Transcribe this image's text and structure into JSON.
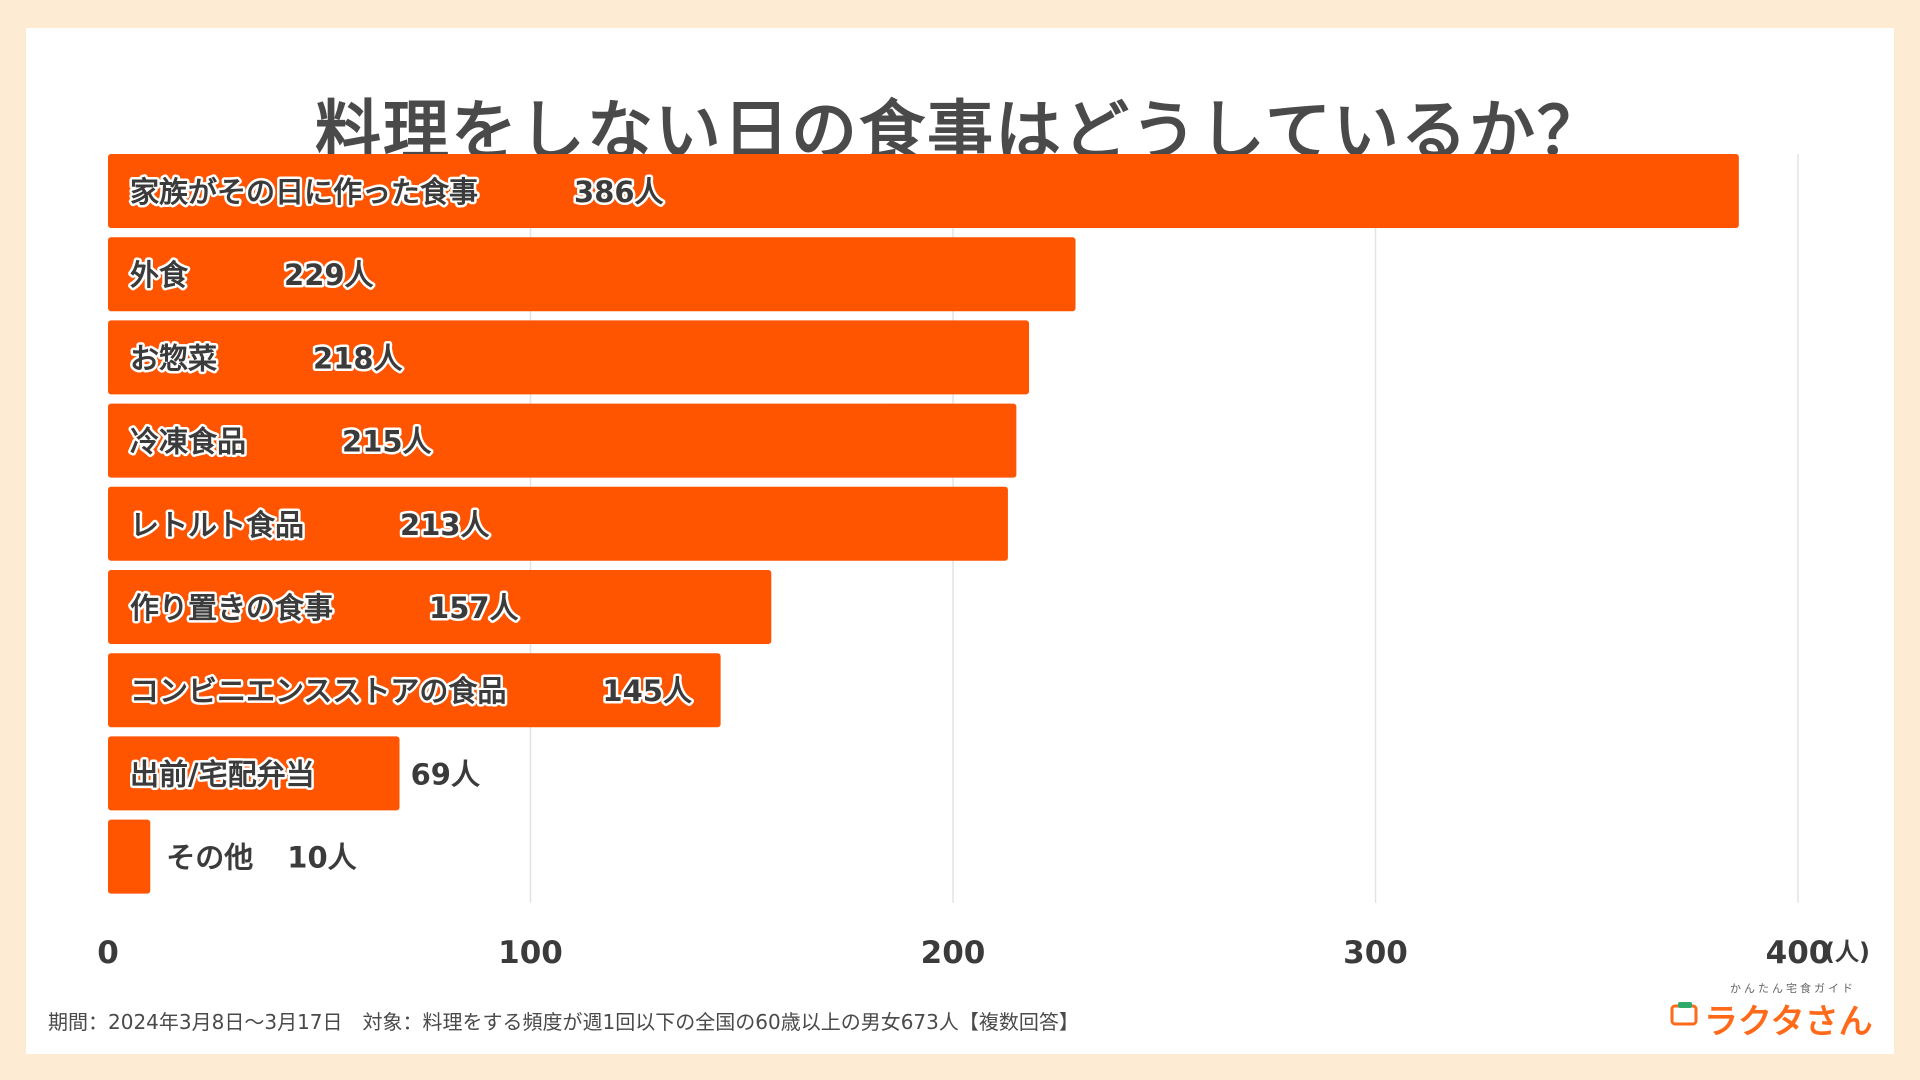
{
  "chart_data": {
    "type": "bar",
    "orientation": "horizontal",
    "title": "料理をしない日の食事はどうしているか？",
    "categories": [
      "家族がその日に作った食事",
      "外食",
      "お惣菜",
      "冷凍食品",
      "レトルト食品",
      "作り置きの食事",
      "コンビニエンスストアの食品",
      "出前/宅配弁当",
      "その他"
    ],
    "values": [
      386,
      229,
      218,
      215,
      213,
      157,
      145,
      69,
      10
    ],
    "value_labels": [
      "386人",
      "229人",
      "218人",
      "215人",
      "213人",
      "157人",
      "145人",
      "69人",
      "10人"
    ],
    "xlim": [
      0,
      400
    ],
    "x_ticks": [
      "0",
      "100",
      "200",
      "300",
      "400"
    ],
    "x_unit": "(人)",
    "grid": true,
    "bar_color": "#ff5500"
  },
  "footnote": "期間：2024年3月8日〜3月17日　対象：料理をする頻度が週1回以下の全国の60歳以上の男女673人【複数回答】",
  "logo": {
    "tagline": "かんたん宅食ガイド",
    "name": "ラクタさん"
  }
}
